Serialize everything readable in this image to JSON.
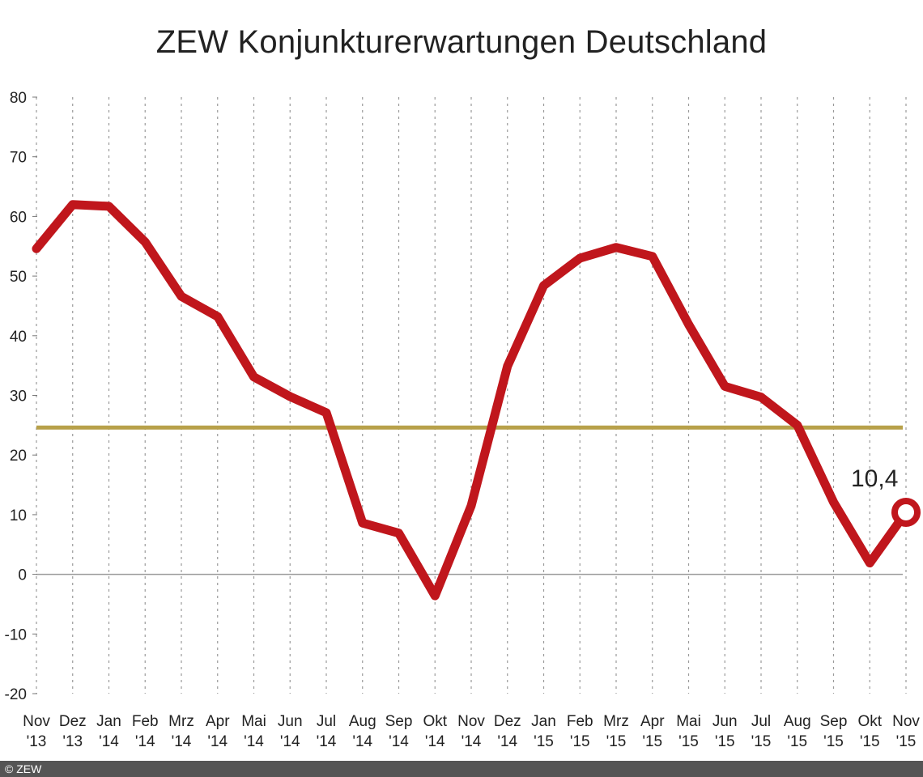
{
  "chart_data": {
    "type": "line",
    "title": "ZEW Konjunkturerwartungen Deutschland",
    "xlabel": "",
    "ylabel": "",
    "ylim": [
      -20,
      80
    ],
    "yticks": [
      80,
      70,
      60,
      50,
      40,
      30,
      20,
      10,
      0,
      -10,
      -20
    ],
    "grid": "vertical dotted",
    "categories": [
      {
        "month": "Nov",
        "year": "'13"
      },
      {
        "month": "Dez",
        "year": "'13"
      },
      {
        "month": "Jan",
        "year": "'14"
      },
      {
        "month": "Feb",
        "year": "'14"
      },
      {
        "month": "Mrz",
        "year": "'14"
      },
      {
        "month": "Apr",
        "year": "'14"
      },
      {
        "month": "Mai",
        "year": "'14"
      },
      {
        "month": "Jun",
        "year": "'14"
      },
      {
        "month": "Jul",
        "year": "'14"
      },
      {
        "month": "Aug",
        "year": "'14"
      },
      {
        "month": "Sep",
        "year": "'14"
      },
      {
        "month": "Okt",
        "year": "'14"
      },
      {
        "month": "Nov",
        "year": "'14"
      },
      {
        "month": "Dez",
        "year": "'14"
      },
      {
        "month": "Jan",
        "year": "'15"
      },
      {
        "month": "Feb",
        "year": "'15"
      },
      {
        "month": "Mrz",
        "year": "'15"
      },
      {
        "month": "Apr",
        "year": "'15"
      },
      {
        "month": "Mai",
        "year": "'15"
      },
      {
        "month": "Jun",
        "year": "'15"
      },
      {
        "month": "Jul",
        "year": "'15"
      },
      {
        "month": "Aug",
        "year": "'15"
      },
      {
        "month": "Sep",
        "year": "'15"
      },
      {
        "month": "Okt",
        "year": "'15"
      },
      {
        "month": "Nov",
        "year": "'15"
      }
    ],
    "series": [
      {
        "color": "#c0161c",
        "values": [
          54.6,
          62.0,
          61.7,
          55.7,
          46.6,
          43.2,
          33.1,
          29.8,
          27.1,
          8.6,
          6.9,
          -3.6,
          11.5,
          34.9,
          48.4,
          53.0,
          54.8,
          53.3,
          41.9,
          31.5,
          29.7,
          25.0,
          12.1,
          1.9,
          10.4
        ]
      }
    ],
    "reference_line": {
      "value": 24.6,
      "color": "#b8a14a"
    },
    "annotations": [
      {
        "text": "10,4",
        "category_index": 24,
        "value": 10.4
      }
    ],
    "footer": "© ZEW"
  }
}
